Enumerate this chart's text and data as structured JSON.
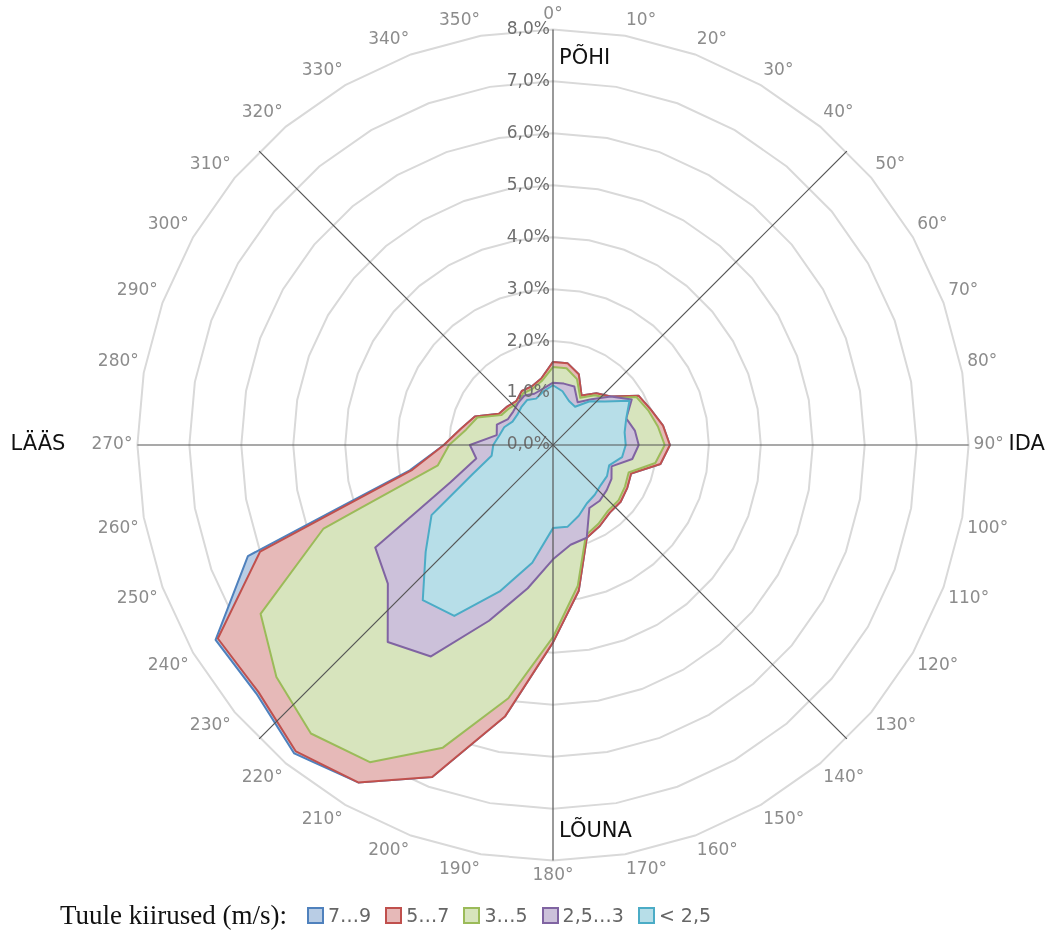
{
  "chart_data": {
    "type": "radar",
    "categories": [
      "0°",
      "10°",
      "20°",
      "30°",
      "40°",
      "50°",
      "60°",
      "70°",
      "80°",
      "90°",
      "100°",
      "110°",
      "120°",
      "130°",
      "140°",
      "150°",
      "160°",
      "170°",
      "180°",
      "190°",
      "200°",
      "210°",
      "220°",
      "230°",
      "240°",
      "250°",
      "260°",
      "270°",
      "280°",
      "290°",
      "300°",
      "310°",
      "320°",
      "330°",
      "340°",
      "350°"
    ],
    "series": [
      {
        "name": "7…9",
        "color": "#4f81bd",
        "values": [
          1.6,
          1.6,
          1.45,
          1.1,
          1.3,
          1.45,
          1.9,
          2.0,
          2.15,
          2.25,
          2.1,
          1.6,
          1.65,
          1.7,
          1.7,
          1.8,
          1.9,
          2.85,
          3.8,
          5.3,
          6.8,
          7.5,
          7.75,
          7.45,
          7.5,
          6.25,
          2.8,
          2.1,
          1.8,
          1.6,
          1.2,
          1.15,
          1.1,
          1.2,
          1.2,
          1.3
        ]
      },
      {
        "name": "5…7",
        "color": "#c0504d",
        "values": [
          1.6,
          1.6,
          1.45,
          1.1,
          1.3,
          1.45,
          1.9,
          2.0,
          2.15,
          2.25,
          2.1,
          1.6,
          1.65,
          1.7,
          1.7,
          1.8,
          1.9,
          2.85,
          3.8,
          5.3,
          6.8,
          7.5,
          7.7,
          7.4,
          7.45,
          6.0,
          2.75,
          2.1,
          1.8,
          1.6,
          1.2,
          1.15,
          1.1,
          1.2,
          1.2,
          1.3
        ]
      },
      {
        "name": "3…5",
        "color": "#9bbb59",
        "values": [
          1.5,
          1.5,
          1.35,
          1.05,
          1.25,
          1.4,
          1.85,
          1.95,
          2.05,
          2.15,
          2.0,
          1.55,
          1.6,
          1.65,
          1.65,
          1.75,
          1.85,
          2.75,
          3.7,
          4.95,
          6.2,
          7.05,
          7.25,
          6.95,
          6.5,
          4.7,
          2.25,
          2.0,
          1.7,
          1.55,
          1.15,
          1.1,
          1.05,
          1.15,
          1.15,
          1.25
        ]
      },
      {
        "name": "2,5…3",
        "color": "#8064a2",
        "values": [
          1.2,
          1.2,
          1.2,
          0.95,
          1.15,
          1.45,
          1.75,
          1.5,
          1.6,
          1.65,
          1.55,
          1.2,
          1.3,
          1.35,
          1.4,
          1.4,
          1.9,
          1.95,
          2.2,
          2.8,
          3.6,
          4.7,
          4.95,
          4.15,
          3.95,
          2.1,
          1.5,
          1.6,
          1.1,
          1.15,
          1.0,
          1.0,
          1.05,
          1.1,
          1.05,
          1.1
        ]
      },
      {
        "name": "< 2,5",
        "color": "#4bacc6",
        "values": [
          1.15,
          1.05,
          0.9,
          0.85,
          1.1,
          1.3,
          1.7,
          1.5,
          1.4,
          1.4,
          1.35,
          1.15,
          1.2,
          1.2,
          1.25,
          1.3,
          1.45,
          1.6,
          1.6,
          2.3,
          3.0,
          3.8,
          3.9,
          3.2,
          2.7,
          1.65,
          1.2,
          1.15,
          1.05,
          1.0,
          0.9,
          0.9,
          0.95,
          1.0,
          0.95,
          1.05
        ]
      }
    ],
    "ylim": [
      0,
      8
    ],
    "yticks": [
      {
        "value": 0,
        "label": "0,0%"
      },
      {
        "value": 1,
        "label": "1,0%"
      },
      {
        "value": 2,
        "label": "2,0%"
      },
      {
        "value": 3,
        "label": "3,0%"
      },
      {
        "value": 4,
        "label": "4,0%"
      },
      {
        "value": 5,
        "label": "5,0%"
      },
      {
        "value": 6,
        "label": "6,0%"
      },
      {
        "value": 7,
        "label": "7,0%"
      },
      {
        "value": 8,
        "label": "8,0%"
      }
    ],
    "grid": true,
    "legend": "bottom",
    "legend_title": "Tuule kiirused (m/s):",
    "annotations": [
      "PÕHI",
      "IDA",
      "LÕUNA",
      "LÄÄS"
    ]
  }
}
